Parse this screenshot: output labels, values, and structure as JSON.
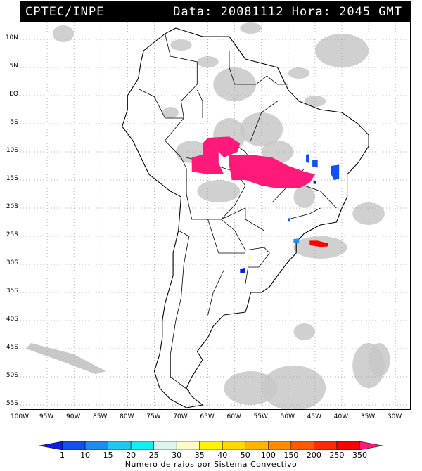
{
  "header": {
    "agency": "CPTEC/INPE",
    "datetime": "Data: 20081112 Hora: 2045 GMT"
  },
  "map": {
    "lat_labels": [
      "10N",
      "5N",
      "EQ",
      "5S",
      "10S",
      "15S",
      "20S",
      "25S",
      "30S",
      "35S",
      "40S",
      "45S",
      "50S",
      "55S"
    ],
    "lon_labels": [
      "100W",
      "95W",
      "90W",
      "85W",
      "80W",
      "75W",
      "70W",
      "65W",
      "60W",
      "55W",
      "50W",
      "45W",
      "40W",
      "35W",
      "30W"
    ],
    "extent": {
      "lon_min": -100,
      "lon_max": -27,
      "lat_min": -56,
      "lat_max": 13
    },
    "cloud_color": "#c8c8c8",
    "land_outline_color": "#000000",
    "grid_color": "#9a9a9a"
  },
  "legend": {
    "title": "Numero de raios por Sistema Convectivo",
    "ticks": [
      "1",
      "10",
      "15",
      "20",
      "25",
      "30",
      "35",
      "40",
      "50",
      "100",
      "150",
      "200",
      "250",
      "350"
    ],
    "colors": [
      "#0a1de6",
      "#1450f0",
      "#1e8cf0",
      "#1ec8f0",
      "#10f0f0",
      "#d8f5f0",
      "#fffbc8",
      "#fff400",
      "#ffd800",
      "#ffb400",
      "#ff8c00",
      "#ff5a00",
      "#ff2a00",
      "#ff0000",
      "#ff1a7a"
    ]
  }
}
